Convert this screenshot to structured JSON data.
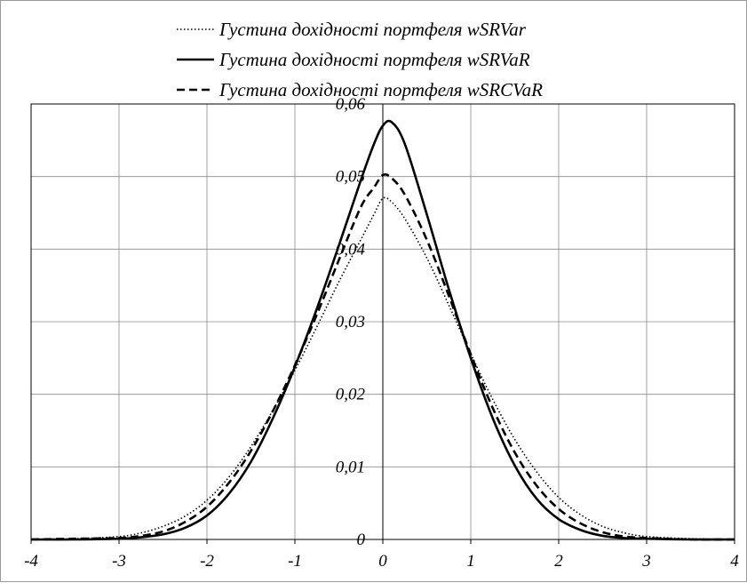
{
  "chart_data": {
    "type": "line",
    "title": "",
    "xlabel": "",
    "ylabel": "",
    "xlim": [
      -4,
      4
    ],
    "ylim": [
      0,
      0.06
    ],
    "x_ticks": [
      "-4",
      "-3",
      "-2",
      "-1",
      "0",
      "1",
      "2",
      "3",
      "4"
    ],
    "y_ticks": [
      "0",
      "0,01",
      "0,02",
      "0,03",
      "0,04",
      "0,05",
      "0,06"
    ],
    "grid": true,
    "legend_position": "top-center",
    "x": [
      -4,
      -3.5,
      -3,
      -2.75,
      -2.5,
      -2.25,
      -2,
      -1.75,
      -1.5,
      -1.25,
      -1,
      -0.75,
      -0.5,
      -0.25,
      -0.1,
      0,
      0.1,
      0.25,
      0.5,
      0.75,
      1,
      1.25,
      1.5,
      1.75,
      2,
      2.25,
      2.5,
      2.75,
      3,
      3.5,
      4
    ],
    "series": [
      {
        "name": "Густина дохідності портфеля wSRVar",
        "style": "dotted",
        "color": "#000000",
        "values": [
          0,
          0.0001,
          0.0004,
          0.0009,
          0.0018,
          0.0032,
          0.0054,
          0.0086,
          0.0128,
          0.0178,
          0.0233,
          0.0293,
          0.0355,
          0.0413,
          0.0448,
          0.047,
          0.0465,
          0.0442,
          0.0388,
          0.0323,
          0.0256,
          0.0193,
          0.0138,
          0.0093,
          0.0058,
          0.0034,
          0.0018,
          0.0009,
          0.0004,
          0.0001,
          0
        ]
      },
      {
        "name": "Густина дохідності портфеля wSRVaR",
        "style": "solid",
        "color": "#000000",
        "values": [
          0,
          0,
          0.0001,
          0.0003,
          0.0007,
          0.0016,
          0.0033,
          0.0063,
          0.0107,
          0.0167,
          0.0238,
          0.0318,
          0.0405,
          0.0495,
          0.0545,
          0.057,
          0.0575,
          0.0545,
          0.0448,
          0.0345,
          0.025,
          0.0167,
          0.0102,
          0.0056,
          0.0028,
          0.0013,
          0.0005,
          0.0002,
          0.0001,
          0,
          0
        ]
      },
      {
        "name": "Густина дохідності портфеля wSRCVaR",
        "style": "dashed",
        "color": "#000000",
        "values": [
          0,
          0.0001,
          0.0002,
          0.0005,
          0.0011,
          0.0024,
          0.0045,
          0.0078,
          0.0122,
          0.0177,
          0.024,
          0.031,
          0.0385,
          0.0458,
          0.0485,
          0.0502,
          0.0498,
          0.0475,
          0.0413,
          0.0336,
          0.0255,
          0.0181,
          0.012,
          0.0074,
          0.0042,
          0.0022,
          0.001,
          0.0004,
          0.0002,
          0,
          0
        ]
      }
    ]
  }
}
